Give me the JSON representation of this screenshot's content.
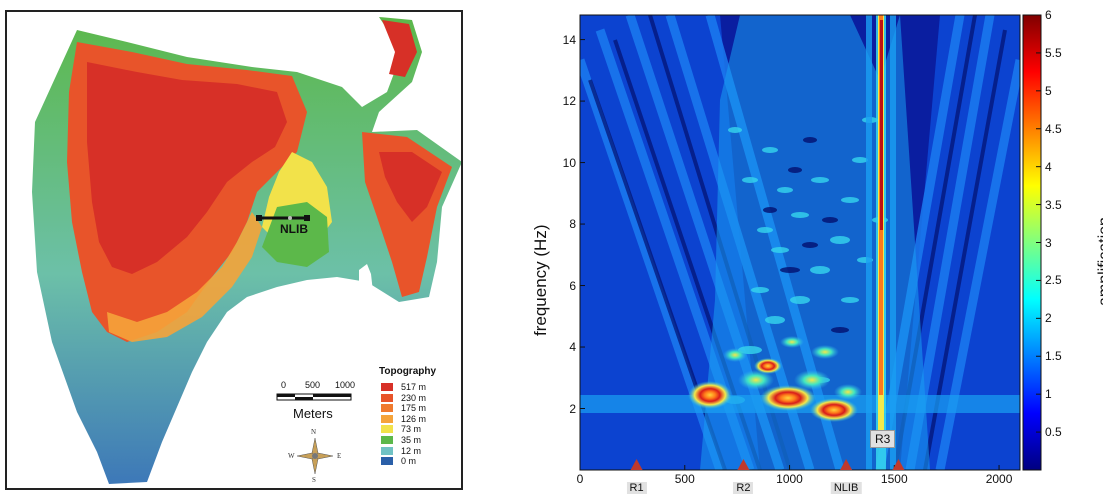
{
  "map": {
    "nlib_label": "NLIB",
    "scale": {
      "ticks": [
        "0",
        "500",
        "1000"
      ],
      "unit": "Meters"
    },
    "compass": {
      "n": "N",
      "s": "S",
      "e": "E",
      "w": "W"
    },
    "legend": {
      "title": "Topography",
      "items": [
        {
          "label": "517 m",
          "color": "#d73027"
        },
        {
          "label": "230 m",
          "color": "#e8542a"
        },
        {
          "label": "175 m",
          "color": "#f07a2e"
        },
        {
          "label": "126 m",
          "color": "#f5a33a"
        },
        {
          "label": "73 m",
          "color": "#f2e24a"
        },
        {
          "label": "35 m",
          "color": "#5cb84a"
        },
        {
          "label": "12 m",
          "color": "#70c2c4"
        },
        {
          "label": "0 m",
          "color": "#2a5fa8"
        }
      ]
    }
  },
  "plot": {
    "ylabel": "frequency (Hz)",
    "yticks": [
      "2",
      "4",
      "6",
      "8",
      "10",
      "12",
      "14"
    ],
    "xticks": [
      "0",
      "500",
      "1000",
      "1500",
      "2000"
    ],
    "stations": [
      {
        "name": "R1",
        "x": 270
      },
      {
        "name": "R2",
        "x": 780
      },
      {
        "name": "NLIB",
        "x": 1270
      },
      {
        "name": "R3",
        "x": 1520
      }
    ],
    "r3_label": "R3",
    "colorbar": {
      "label": "amplification",
      "ticks": [
        "0.5",
        "1",
        "1.5",
        "2",
        "2.5",
        "3",
        "3.5",
        "4",
        "4.5",
        "5",
        "5.5",
        "6"
      ],
      "range": [
        0,
        6
      ]
    },
    "xlim": [
      0,
      2100
    ],
    "ylim": [
      0,
      14.8
    ]
  }
}
